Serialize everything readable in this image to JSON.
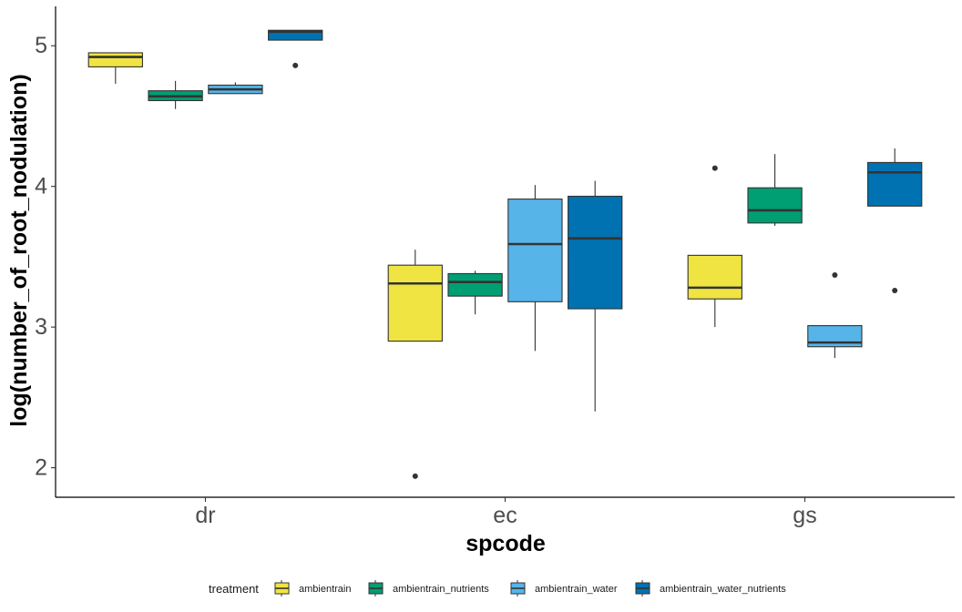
{
  "chart_data": {
    "type": "boxplot",
    "xlabel": "spcode",
    "ylabel": "log(number_of_root_nodulation)",
    "categories": [
      "dr",
      "ec",
      "gs"
    ],
    "yticks": [
      "2",
      "3",
      "4",
      "5"
    ],
    "ytick_values": [
      2,
      3,
      4,
      5
    ],
    "ylim": [
      1.79,
      5.28
    ],
    "grid": false,
    "legend_position": "bottom",
    "legend": {
      "title": "treatment",
      "items": [
        {
          "name": "ambientrain",
          "color": "#F0E442"
        },
        {
          "name": "ambientrain_nutrients",
          "color": "#009E73"
        },
        {
          "name": "ambientrain_water",
          "color": "#56B4E9"
        },
        {
          "name": "ambientrain_water_nutrients",
          "color": "#0072B2"
        }
      ]
    },
    "series": [
      {
        "name": "ambientrain",
        "color": "#F0E442",
        "boxes": [
          {
            "category": "dr",
            "whisker_low": 4.73,
            "q1": 4.85,
            "median": 4.92,
            "q3": 4.95,
            "whisker_high": 4.95,
            "outliers": []
          },
          {
            "category": "ec",
            "whisker_low": 2.9,
            "q1": 2.9,
            "median": 3.31,
            "q3": 3.44,
            "whisker_high": 3.55,
            "outliers": [
              1.94
            ]
          },
          {
            "category": "gs",
            "whisker_low": 3.0,
            "q1": 3.2,
            "median": 3.28,
            "q3": 3.51,
            "whisker_high": 3.51,
            "outliers": [
              4.13
            ]
          }
        ]
      },
      {
        "name": "ambientrain_nutrients",
        "color": "#009E73",
        "boxes": [
          {
            "category": "dr",
            "whisker_low": 4.55,
            "q1": 4.61,
            "median": 4.64,
            "q3": 4.68,
            "whisker_high": 4.75,
            "outliers": []
          },
          {
            "category": "ec",
            "whisker_low": 3.09,
            "q1": 3.22,
            "median": 3.32,
            "q3": 3.38,
            "whisker_high": 3.4,
            "outliers": []
          },
          {
            "category": "gs",
            "whisker_low": 3.72,
            "q1": 3.74,
            "median": 3.83,
            "q3": 3.99,
            "whisker_high": 4.23,
            "outliers": []
          }
        ]
      },
      {
        "name": "ambientrain_water",
        "color": "#56B4E9",
        "boxes": [
          {
            "category": "dr",
            "whisker_low": 4.66,
            "q1": 4.66,
            "median": 4.69,
            "q3": 4.72,
            "whisker_high": 4.74,
            "outliers": []
          },
          {
            "category": "ec",
            "whisker_low": 2.83,
            "q1": 3.18,
            "median": 3.59,
            "q3": 3.91,
            "whisker_high": 4.01,
            "outliers": []
          },
          {
            "category": "gs",
            "whisker_low": 2.78,
            "q1": 2.86,
            "median": 2.89,
            "q3": 3.01,
            "whisker_high": 3.01,
            "outliers": [
              3.37
            ]
          }
        ]
      },
      {
        "name": "ambientrain_water_nutrients",
        "color": "#0072B2",
        "boxes": [
          {
            "category": "dr",
            "whisker_low": 5.04,
            "q1": 5.04,
            "median": 5.1,
            "q3": 5.11,
            "whisker_high": 5.11,
            "outliers": [
              4.86
            ]
          },
          {
            "category": "ec",
            "whisker_low": 2.4,
            "q1": 3.13,
            "median": 3.63,
            "q3": 3.93,
            "whisker_high": 4.04,
            "outliers": []
          },
          {
            "category": "gs",
            "whisker_low": 3.86,
            "q1": 3.86,
            "median": 4.1,
            "q3": 4.17,
            "whisker_high": 4.27,
            "outliers": [
              3.26
            ]
          }
        ]
      }
    ]
  }
}
